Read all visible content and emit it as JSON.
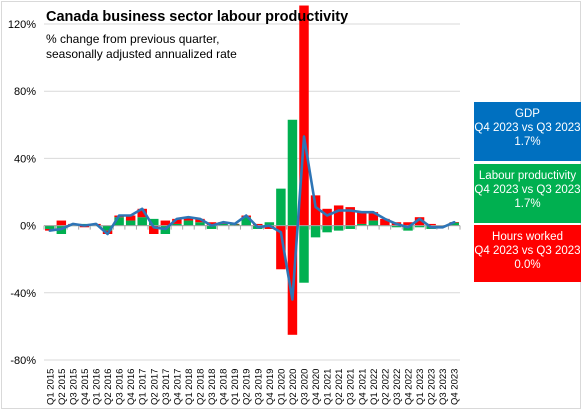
{
  "chart_data": {
    "type": "bar",
    "title": "Canada business sector labour productivity",
    "subtitle_lines": [
      "% change from previous quarter,",
      "seasonally adjusted annualized rate"
    ],
    "ylim": [
      -80,
      120
    ],
    "yticks": [
      -80,
      -40,
      0,
      40,
      80,
      120
    ],
    "ytick_labels": [
      "-80%",
      "-40%",
      "0%",
      "40%",
      "80%",
      "120%"
    ],
    "categories": [
      "Q1 2015",
      "Q2 2015",
      "Q3 2015",
      "Q4 2015",
      "Q1 2016",
      "Q2 2016",
      "Q3 2016",
      "Q4 2016",
      "Q1 2017",
      "Q2 2017",
      "Q3 2017",
      "Q4 2017",
      "Q1 2018",
      "Q2 2018",
      "Q3 2018",
      "Q4 2018",
      "Q1 2019",
      "Q2 2019",
      "Q3 2019",
      "Q4 2019",
      "Q1 2020",
      "Q2 2020",
      "Q3 2020",
      "Q4 2020",
      "Q1 2021",
      "Q2 2021",
      "Q3 2021",
      "Q4 2021",
      "Q1 2022",
      "Q2 2022",
      "Q3 2022",
      "Q4 2022",
      "Q1 2023",
      "Q2 2023",
      "Q3 2023",
      "Q4 2023"
    ],
    "series": [
      {
        "name": "Labour productivity",
        "type": "bar",
        "color": "#00b050",
        "values": [
          -2,
          -5,
          0,
          1,
          0,
          -3,
          5,
          3,
          5,
          4,
          -5,
          1,
          3,
          2,
          -2,
          1,
          1,
          5,
          -2,
          2,
          22,
          63,
          -34,
          -7,
          -4,
          -3,
          -2,
          1,
          3,
          0,
          -1,
          -3,
          -1,
          -2,
          0,
          2
        ]
      },
      {
        "name": "Hours worked",
        "type": "bar",
        "color": "#ff0000",
        "values": [
          -1,
          3,
          1,
          -1,
          1,
          -2,
          1,
          3,
          5,
          -5,
          3,
          3,
          2,
          2,
          2,
          1,
          0,
          1,
          1,
          -2,
          -26,
          -65,
          131,
          18,
          10,
          12,
          11,
          7,
          5,
          4,
          2,
          2,
          5,
          1,
          0,
          0
        ]
      },
      {
        "name": "GDP",
        "type": "line",
        "color": "#2e75b6",
        "values": [
          -3,
          -2,
          1,
          0,
          1,
          -5,
          6,
          6,
          10,
          -1,
          -2,
          4,
          5,
          4,
          0,
          2,
          1,
          6,
          -1,
          0,
          -4,
          -44,
          53,
          11,
          6,
          9,
          9,
          8,
          8,
          4,
          1,
          -1,
          4,
          -1,
          -1,
          2
        ]
      }
    ],
    "legend": {
      "placement": "right",
      "boxes": [
        {
          "lines": [
            "GDP",
            "Q4 2023 vs Q3 2023",
            "1.7%"
          ],
          "color": "#0070c0"
        },
        {
          "lines": [
            "Labour productivity",
            "Q4 2023 vs Q3 2023",
            "1.7%"
          ],
          "color": "#00b050"
        },
        {
          "lines": [
            "Hours worked",
            "Q4 2023 vs Q3 2023",
            "0.0%"
          ],
          "color": "#ff0000"
        }
      ]
    },
    "grid": true,
    "gridline_color": "#d9d9d9"
  }
}
